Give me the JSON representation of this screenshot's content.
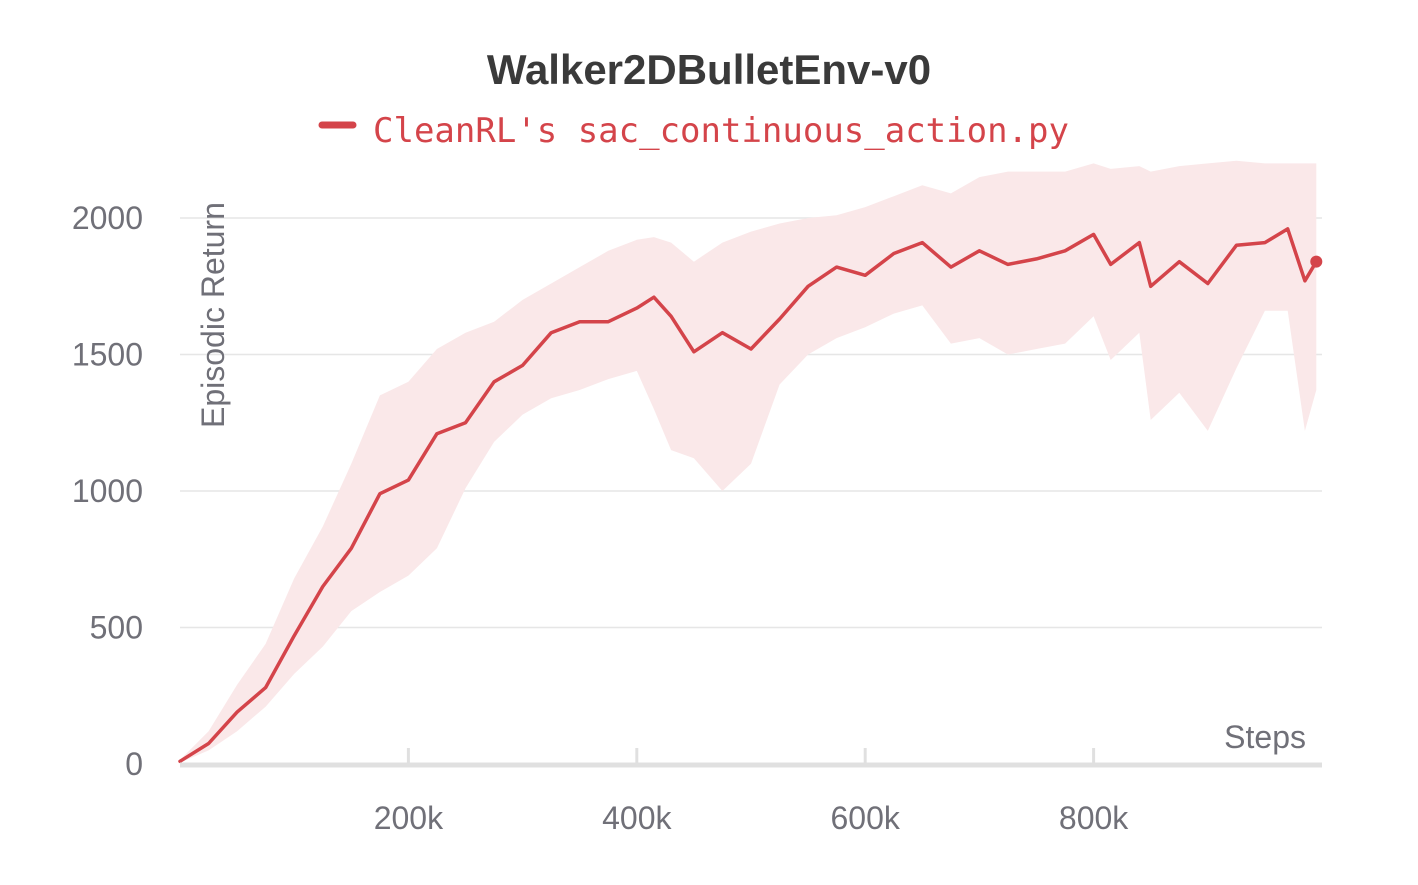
{
  "chart_data": {
    "type": "line",
    "title": "Walker2DBulletEnv-v0",
    "xlabel": "Steps",
    "ylabel": "Episodic Return",
    "xlim": [
      0,
      1000000
    ],
    "ylim": [
      0,
      2000
    ],
    "x_ticks": [
      200000,
      400000,
      600000,
      800000
    ],
    "x_tick_labels": [
      "200k",
      "400k",
      "600k",
      "800k"
    ],
    "y_ticks": [
      0,
      500,
      1000,
      1500,
      2000
    ],
    "y_tick_labels": [
      "0",
      "500",
      "1000",
      "1500",
      "2000"
    ],
    "grid": "horizontal",
    "legend_position": "top-center",
    "colors": {
      "series": "#d4444a",
      "band": "#fae8e9",
      "grid": "#e6e6e6",
      "axis": "#e0e0e0"
    },
    "series": [
      {
        "name": "CleanRL's sac_continuous_action.py",
        "x": [
          0,
          25000,
          50000,
          75000,
          100000,
          125000,
          150000,
          175000,
          200000,
          225000,
          250000,
          275000,
          300000,
          325000,
          350000,
          375000,
          400000,
          415000,
          430000,
          450000,
          475000,
          500000,
          525000,
          550000,
          575000,
          600000,
          625000,
          650000,
          675000,
          700000,
          725000,
          750000,
          775000,
          800000,
          815000,
          840000,
          850000,
          875000,
          900000,
          925000,
          950000,
          970000,
          985000,
          995000
        ],
        "values": [
          10,
          75,
          190,
          280,
          470,
          650,
          790,
          990,
          1040,
          1210,
          1250,
          1400,
          1460,
          1580,
          1620,
          1620,
          1670,
          1710,
          1640,
          1510,
          1580,
          1520,
          1630,
          1750,
          1820,
          1790,
          1870,
          1910,
          1820,
          1880,
          1830,
          1850,
          1880,
          1940,
          1830,
          1910,
          1750,
          1840,
          1760,
          1900,
          1910,
          1960,
          1770,
          1840
        ],
        "lower": [
          5,
          50,
          120,
          210,
          330,
          430,
          560,
          630,
          690,
          790,
          1010,
          1180,
          1280,
          1340,
          1370,
          1410,
          1440,
          1300,
          1150,
          1120,
          1000,
          1100,
          1390,
          1500,
          1560,
          1600,
          1650,
          1680,
          1540,
          1560,
          1500,
          1520,
          1540,
          1640,
          1480,
          1580,
          1260,
          1360,
          1220,
          1450,
          1660,
          1660,
          1220,
          1370
        ],
        "upper": [
          15,
          120,
          290,
          440,
          680,
          870,
          1100,
          1350,
          1400,
          1520,
          1580,
          1620,
          1700,
          1760,
          1820,
          1880,
          1920,
          1930,
          1910,
          1840,
          1910,
          1950,
          1980,
          2000,
          2010,
          2040,
          2080,
          2120,
          2090,
          2150,
          2170,
          2170,
          2170,
          2200,
          2180,
          2190,
          2170,
          2190,
          2200,
          2210,
          2200,
          2200,
          2200,
          2200
        ]
      }
    ]
  }
}
